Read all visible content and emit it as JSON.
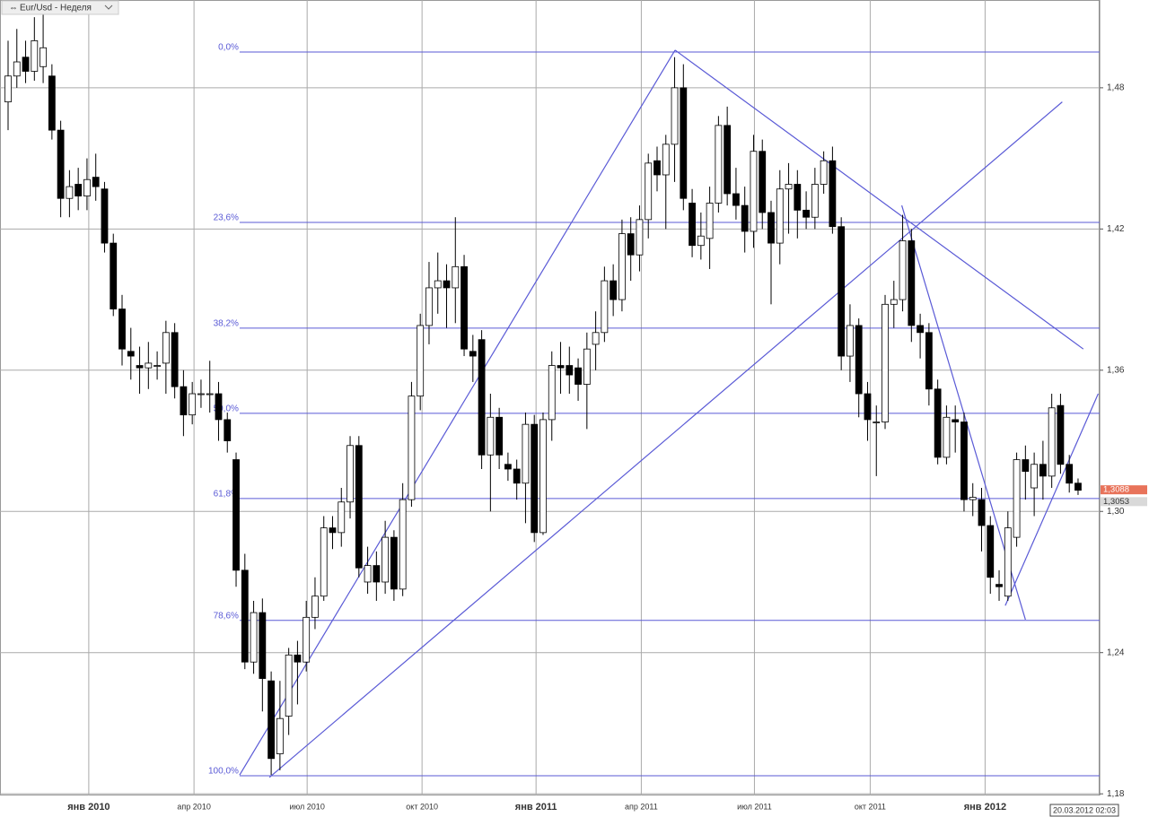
{
  "chart_data": {
    "type": "candlestick",
    "title": "Eur/Usd - Неделя",
    "timestamp": "20.03.2012 02:03",
    "up_color": "#ffffff",
    "down_color": "#000000",
    "line_color": "#5a5ad6",
    "grid": true,
    "open": [
      1.474,
      1.485,
      1.493,
      1.487,
      1.489,
      1.485,
      1.462,
      1.433,
      1.439,
      1.434,
      1.442,
      1.437,
      1.414,
      1.386,
      1.368,
      1.362,
      1.361,
      1.362,
      1.363,
      1.376,
      1.353,
      1.341,
      1.35,
      1.35,
      1.35,
      1.339,
      1.322,
      1.275,
      1.236,
      1.257,
      1.228,
      1.197,
      1.213,
      1.239,
      1.236,
      1.255,
      1.264,
      1.293,
      1.291,
      1.304,
      1.328,
      1.27,
      1.277,
      1.27,
      1.289,
      1.267,
      1.305,
      1.349,
      1.379,
      1.395,
      1.398,
      1.395,
      1.404,
      1.368,
      1.373,
      1.324,
      1.34,
      1.32,
      1.318,
      1.312,
      1.337,
      1.291,
      1.339,
      1.362,
      1.362,
      1.361,
      1.354,
      1.371,
      1.376,
      1.398,
      1.39,
      1.418,
      1.409,
      1.424,
      1.449,
      1.443,
      1.456,
      1.48,
      1.431,
      1.413,
      1.416,
      1.431,
      1.464,
      1.435,
      1.43,
      1.419,
      1.453,
      1.427,
      1.414,
      1.437,
      1.439,
      1.428,
      1.425,
      1.439,
      1.449,
      1.421,
      1.366,
      1.379,
      1.35,
      1.338,
      1.338,
      1.388,
      1.39,
      1.415,
      1.379,
      1.376,
      1.352,
      1.323,
      1.339,
      1.338,
      1.305,
      1.305,
      1.294,
      1.269,
      1.264,
      1.289,
      1.322,
      1.31,
      1.32,
      1.315,
      1.345,
      1.32,
      1.312
    ],
    "high": [
      1.5,
      1.505,
      1.5,
      1.51,
      1.512,
      1.49,
      1.466,
      1.445,
      1.446,
      1.45,
      1.452,
      1.44,
      1.418,
      1.392,
      1.378,
      1.37,
      1.372,
      1.368,
      1.381,
      1.38,
      1.36,
      1.355,
      1.356,
      1.364,
      1.355,
      1.342,
      1.325,
      1.282,
      1.262,
      1.263,
      1.232,
      1.228,
      1.242,
      1.245,
      1.262,
      1.272,
      1.298,
      1.298,
      1.31,
      1.332,
      1.332,
      1.285,
      1.283,
      1.296,
      1.292,
      1.312,
      1.355,
      1.384,
      1.406,
      1.41,
      1.405,
      1.425,
      1.409,
      1.375,
      1.377,
      1.35,
      1.344,
      1.325,
      1.322,
      1.342,
      1.341,
      1.342,
      1.368,
      1.372,
      1.37,
      1.365,
      1.376,
      1.385,
      1.404,
      1.405,
      1.424,
      1.425,
      1.43,
      1.452,
      1.455,
      1.46,
      1.493,
      1.49,
      1.437,
      1.427,
      1.438,
      1.468,
      1.472,
      1.446,
      1.438,
      1.46,
      1.458,
      1.432,
      1.445,
      1.448,
      1.445,
      1.436,
      1.446,
      1.453,
      1.455,
      1.425,
      1.388,
      1.382,
      1.355,
      1.345,
      1.392,
      1.398,
      1.426,
      1.42,
      1.384,
      1.38,
      1.356,
      1.345,
      1.345,
      1.342,
      1.312,
      1.31,
      1.298,
      1.275,
      1.3,
      1.325,
      1.328,
      1.325,
      1.33,
      1.35,
      1.35,
      1.324,
      1.314
    ],
    "low": [
      1.462,
      1.48,
      1.482,
      1.483,
      1.482,
      1.458,
      1.425,
      1.425,
      1.428,
      1.428,
      1.432,
      1.41,
      1.383,
      1.362,
      1.356,
      1.35,
      1.352,
      1.356,
      1.35,
      1.348,
      1.332,
      1.337,
      1.344,
      1.342,
      1.33,
      1.325,
      1.268,
      1.233,
      1.231,
      1.215,
      1.188,
      1.19,
      1.205,
      1.218,
      1.232,
      1.25,
      1.262,
      1.284,
      1.285,
      1.297,
      1.272,
      1.265,
      1.262,
      1.265,
      1.262,
      1.264,
      1.302,
      1.343,
      1.371,
      1.384,
      1.378,
      1.38,
      1.366,
      1.355,
      1.318,
      1.3,
      1.318,
      1.313,
      1.305,
      1.295,
      1.287,
      1.29,
      1.33,
      1.35,
      1.35,
      1.347,
      1.335,
      1.36,
      1.372,
      1.383,
      1.385,
      1.398,
      1.402,
      1.416,
      1.436,
      1.42,
      1.44,
      1.428,
      1.408,
      1.407,
      1.403,
      1.427,
      1.43,
      1.424,
      1.41,
      1.412,
      1.42,
      1.388,
      1.405,
      1.418,
      1.416,
      1.42,
      1.42,
      1.435,
      1.418,
      1.36,
      1.355,
      1.34,
      1.33,
      1.315,
      1.335,
      1.378,
      1.385,
      1.372,
      1.365,
      1.345,
      1.32,
      1.32,
      1.325,
      1.3,
      1.298,
      1.283,
      1.265,
      1.262,
      1.262,
      1.285,
      1.305,
      1.298,
      1.305,
      1.31,
      1.316,
      1.308,
      1.307
    ],
    "close": [
      1.485,
      1.491,
      1.487,
      1.5,
      1.497,
      1.462,
      1.433,
      1.438,
      1.434,
      1.441,
      1.438,
      1.414,
      1.386,
      1.369,
      1.366,
      1.361,
      1.363,
      1.362,
      1.376,
      1.353,
      1.341,
      1.35,
      1.35,
      1.35,
      1.339,
      1.33,
      1.275,
      1.236,
      1.257,
      1.229,
      1.195,
      1.212,
      1.239,
      1.236,
      1.255,
      1.264,
      1.293,
      1.291,
      1.304,
      1.328,
      1.276,
      1.277,
      1.27,
      1.289,
      1.267,
      1.305,
      1.349,
      1.379,
      1.395,
      1.398,
      1.395,
      1.404,
      1.369,
      1.366,
      1.324,
      1.34,
      1.324,
      1.318,
      1.312,
      1.337,
      1.291,
      1.339,
      1.362,
      1.361,
      1.358,
      1.354,
      1.369,
      1.376,
      1.398,
      1.39,
      1.418,
      1.409,
      1.424,
      1.448,
      1.443,
      1.456,
      1.48,
      1.433,
      1.413,
      1.417,
      1.431,
      1.464,
      1.435,
      1.43,
      1.419,
      1.453,
      1.427,
      1.414,
      1.437,
      1.439,
      1.428,
      1.425,
      1.439,
      1.449,
      1.421,
      1.366,
      1.379,
      1.35,
      1.339,
      1.338,
      1.388,
      1.39,
      1.415,
      1.379,
      1.376,
      1.352,
      1.323,
      1.34,
      1.338,
      1.305,
      1.306,
      1.294,
      1.272,
      1.268,
      1.293,
      1.322,
      1.317,
      1.32,
      1.315,
      1.344,
      1.32,
      1.312,
      1.309
    ],
    "xlim": [
      -0.921,
      124.46
    ],
    "xticks": [
      {
        "value": 9.2,
        "label": "янв 2010"
      },
      {
        "value": 21.2,
        "label": "апр 2010"
      },
      {
        "value": 34.1,
        "label": "июл 2010"
      },
      {
        "value": 47.2,
        "label": "окт 2010"
      },
      {
        "value": 60.2,
        "label": "янв 2011"
      },
      {
        "value": 72.2,
        "label": "апр 2011"
      },
      {
        "value": 85.1,
        "label": "июл 2011"
      },
      {
        "value": 98.3,
        "label": "окт 2011"
      },
      {
        "value": 111.4,
        "label": "янв 2012"
      }
    ],
    "ylim": [
      1.1793,
      1.5173
    ],
    "yticks": [
      {
        "value": 1.18,
        "label": "1,18"
      },
      {
        "value": 1.24,
        "label": "1,24"
      },
      {
        "value": 1.3,
        "label": "1,30"
      },
      {
        "value": 1.36,
        "label": "1,36"
      },
      {
        "value": 1.42,
        "label": "1,42"
      },
      {
        "value": 1.48,
        "label": "1,48"
      }
    ],
    "fib_levels": [
      {
        "label": "0,0%",
        "value": 1.4952
      },
      {
        "label": "23,6%",
        "value": 1.4228
      },
      {
        "label": "38,2%",
        "value": 1.3779
      },
      {
        "label": "50,0%",
        "value": 1.3417
      },
      {
        "label": "61,8%",
        "value": 1.3055
      },
      {
        "label": "78,6%",
        "value": 1.2537
      },
      {
        "label": "100,0%",
        "value": 1.1877
      }
    ],
    "fib_start": 26.4,
    "trend_lines": [
      {
        "x": [
          26.4,
          76.05
        ],
        "y": [
          1.188,
          1.496
        ]
      },
      {
        "x": [
          29.8,
          120.2
        ],
        "y": [
          1.187,
          1.474
        ]
      },
      {
        "x": [
          76.05,
          122.6
        ],
        "y": [
          1.496,
          1.369
        ]
      },
      {
        "x": [
          101.9,
          116.0
        ],
        "y": [
          1.43,
          1.254
        ]
      },
      {
        "x": [
          113.7,
          124.3
        ],
        "y": [
          1.26,
          1.35
        ]
      }
    ],
    "price_tags": [
      {
        "label": "1,3088",
        "value": 1.3088,
        "color": "#e8735a"
      },
      {
        "label": "1,3053",
        "value": 1.3053,
        "color": "#d9d9d9"
      }
    ]
  }
}
